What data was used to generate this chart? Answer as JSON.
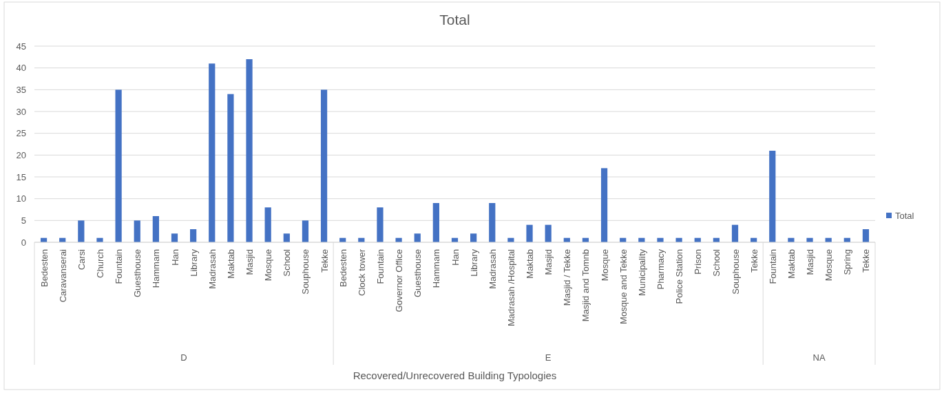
{
  "chart_data": {
    "type": "bar",
    "title": "Total",
    "xlabel": "Recovered/Unrecovered Building Typologies",
    "categories": [
      "Bedesten",
      "Caravanserai",
      "Carsi",
      "Church",
      "Fountain",
      "Guesthouse",
      "Hammam",
      "Han",
      "Library",
      "Madrasah",
      "Maktab",
      "Masjid",
      "Mosque",
      "School",
      "Souphouse",
      "Tekke",
      "Bedesten",
      "Clock tower",
      "Fountain",
      "Governor Office",
      "Guesthouse",
      "Hammam",
      "Han",
      "Library",
      "Madrasah",
      "Madrasah /Hospital",
      "Maktab",
      "Masjid",
      "Masjid / Tekke",
      "Masjid and Tomnb",
      "Mosque",
      "Mosque and Tekke",
      "Municipality",
      "Pharmacy",
      "Police Station",
      "Prison",
      "School",
      "Souphouse",
      "Tekke",
      "Fountain",
      "Maktab",
      "Masjid",
      "Mosque",
      "Spring",
      "Tekke"
    ],
    "series": [
      {
        "name": "Total",
        "color": "#4472c4",
        "values": [
          1,
          1,
          5,
          1,
          35,
          5,
          6,
          2,
          3,
          41,
          34,
          42,
          8,
          2,
          5,
          35,
          1,
          1,
          8,
          1,
          2,
          9,
          1,
          2,
          9,
          1,
          4,
          4,
          1,
          1,
          17,
          1,
          1,
          1,
          1,
          1,
          1,
          4,
          1,
          21,
          1,
          1,
          1,
          1,
          3
        ]
      }
    ],
    "annotations": [
      "D",
      "E",
      "NA"
    ],
    "ylim": [
      0,
      45
    ],
    "yticks": [
      0,
      5,
      10,
      15,
      20,
      25,
      30,
      35,
      40,
      45
    ],
    "grid": "y",
    "legend": "right"
  }
}
